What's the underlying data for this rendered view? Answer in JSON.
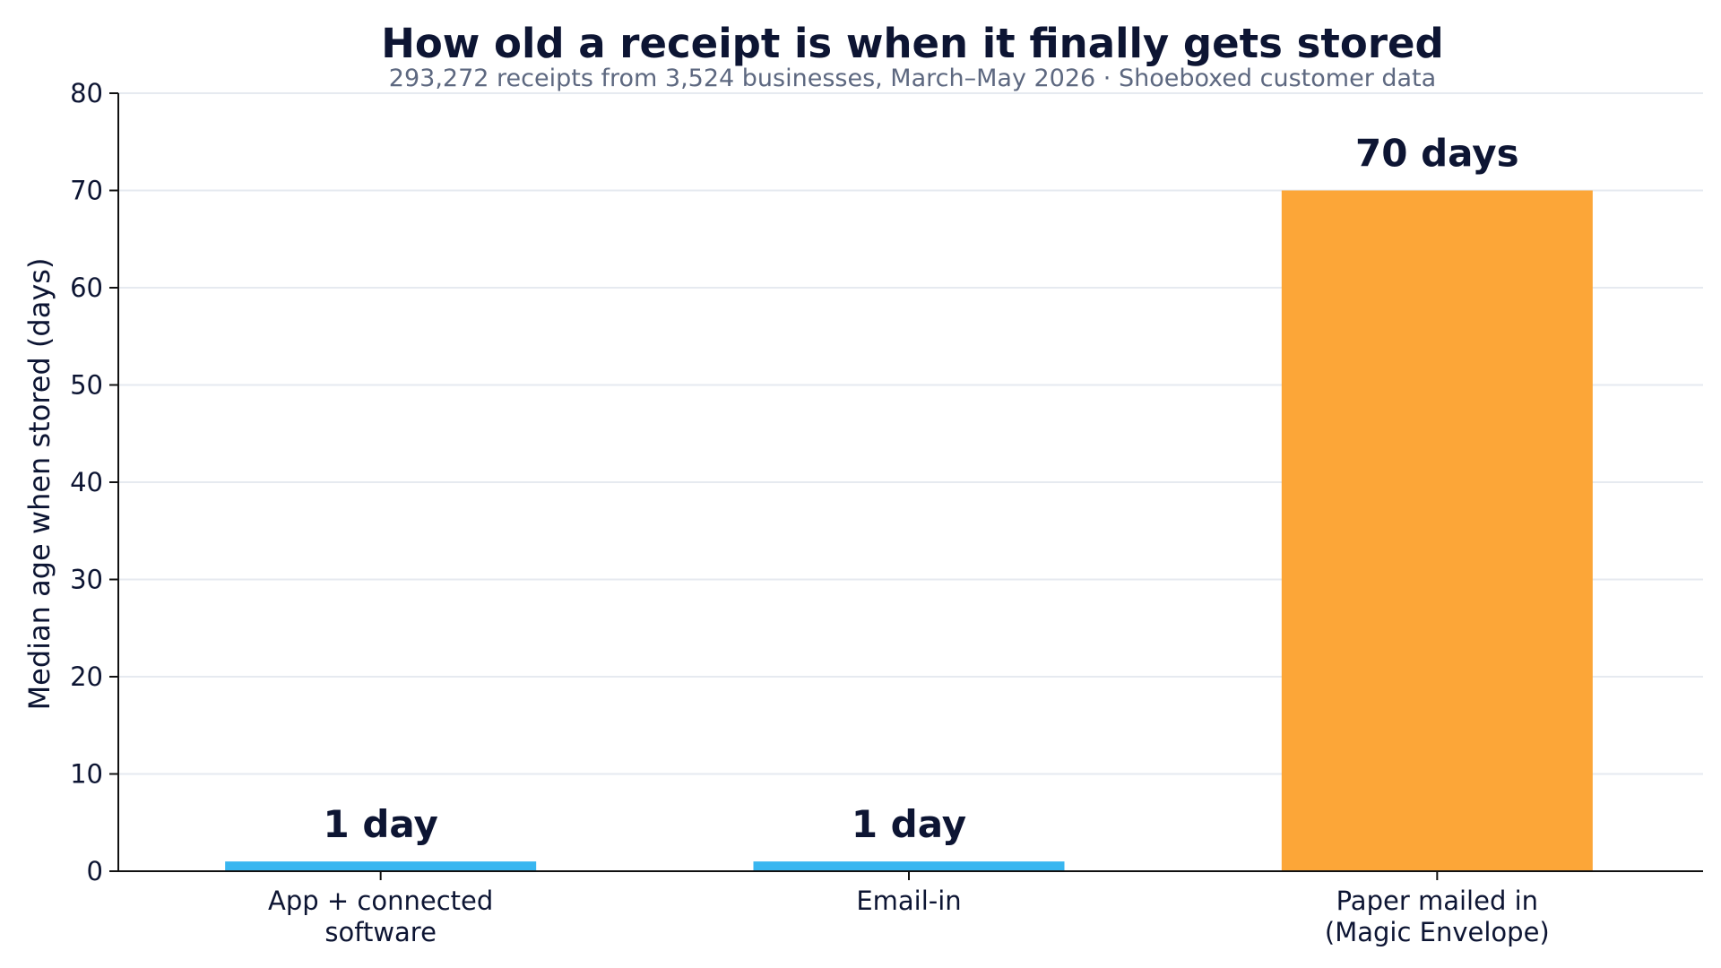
{
  "chart_data": {
    "type": "bar",
    "title": "How old a receipt is when it finally gets stored",
    "subtitle": "293,272 receipts from 3,524 businesses, March–May 2026 · Shoeboxed customer data",
    "xlabel": "",
    "ylabel": "Median age when stored (days)",
    "ylim": [
      0,
      80
    ],
    "yticks": [
      0,
      10,
      20,
      30,
      40,
      50,
      60,
      70,
      80
    ],
    "grid": "horizontal",
    "categories": [
      [
        "App + connected",
        "software"
      ],
      [
        "Email-in"
      ],
      [
        "Paper mailed in",
        "(Magic Envelope)"
      ]
    ],
    "values": [
      1,
      1,
      70
    ],
    "data_labels": [
      "1 day",
      "1 day",
      "70 days"
    ],
    "colors": [
      "#38b6f0",
      "#38b6f0",
      "#fca638"
    ]
  }
}
